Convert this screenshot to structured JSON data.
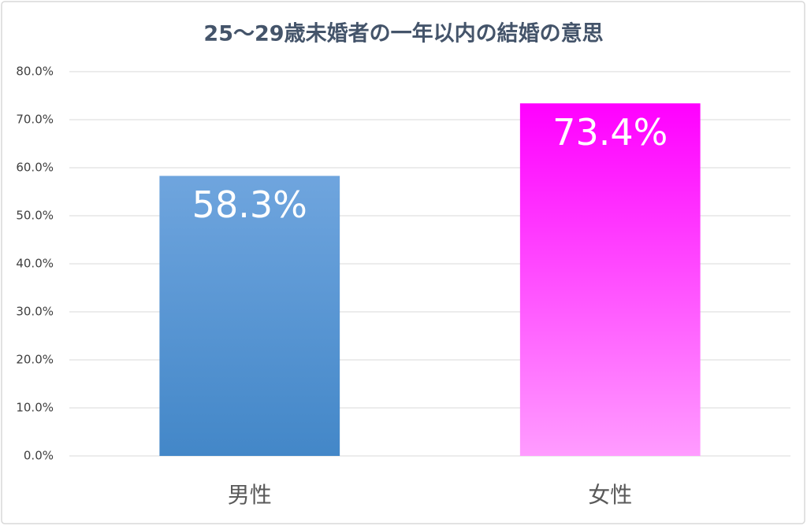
{
  "chart_data": {
    "type": "bar",
    "title": "25～29歳未婚者の一年以内の結婚の意思",
    "categories": [
      "男性",
      "女性"
    ],
    "values": [
      58.3,
      73.4
    ],
    "value_labels": [
      "58.3%",
      "73.4%"
    ],
    "colors": [
      [
        "#6fa5de",
        "#4387c8"
      ],
      [
        "#ff00ff",
        "#ff9cff"
      ]
    ],
    "ylim": [
      0,
      80
    ],
    "yticks": [
      {
        "value": 0,
        "label": "0.0%"
      },
      {
        "value": 10,
        "label": "10.0%"
      },
      {
        "value": 20,
        "label": "20.0%"
      },
      {
        "value": 30,
        "label": "30.0%"
      },
      {
        "value": 40,
        "label": "40.0%"
      },
      {
        "value": 50,
        "label": "50.0%"
      },
      {
        "value": 60,
        "label": "60.0%"
      },
      {
        "value": 70,
        "label": "70.0%"
      },
      {
        "value": 80,
        "label": "80.0%"
      }
    ],
    "grid": true
  }
}
